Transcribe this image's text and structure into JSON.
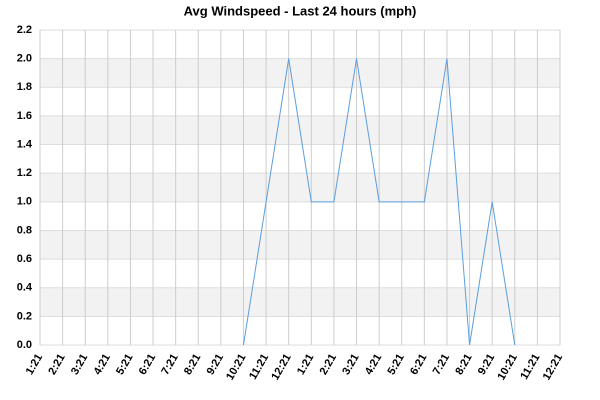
{
  "chart_data": {
    "type": "line",
    "title": "Avg Windspeed - Last 24 hours (mph)",
    "categories": [
      "1:21",
      "2:21",
      "3:21",
      "4:21",
      "5:21",
      "6:21",
      "7:21",
      "8:21",
      "9:21",
      "10:21",
      "11:21",
      "12:21",
      "1:21",
      "2:21",
      "3:21",
      "4:21",
      "5:21",
      "6:21",
      "7:21",
      "8:21",
      "9:21",
      "10:21",
      "11:21",
      "12:21"
    ],
    "series": [
      {
        "name": "Avg Windspeed",
        "color": "#5b9ee0",
        "values": [
          null,
          null,
          null,
          null,
          null,
          null,
          null,
          null,
          null,
          0,
          1,
          2,
          1,
          1,
          2,
          1,
          1,
          1,
          2,
          0,
          1,
          0,
          null,
          null
        ]
      }
    ],
    "ylim": [
      0,
      2.2
    ],
    "yticks": [
      {
        "value": 0,
        "label": "0.0"
      },
      0.2,
      0.4,
      0.6,
      0.8,
      {
        "value": 1,
        "label": "1.0"
      },
      1.2,
      1.4,
      1.6,
      1.8,
      {
        "value": 2,
        "label": "2.0"
      },
      2.2
    ],
    "grid": true
  }
}
